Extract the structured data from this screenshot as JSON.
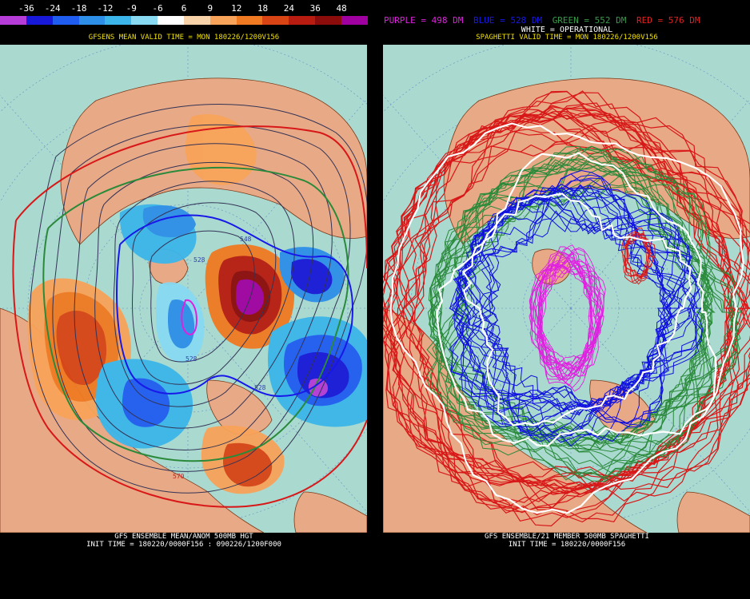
{
  "scale": {
    "ticks": [
      "-36",
      "-24",
      "-18",
      "-12",
      "-9",
      "-6",
      "6",
      "9",
      "12",
      "18",
      "24",
      "36",
      "48"
    ],
    "colors": [
      "#b53cd6",
      "#1818d8",
      "#1f5cf0",
      "#2e8fe8",
      "#3cb6ea",
      "#88d9f2",
      "#ffffff",
      "#f8d2a8",
      "#f8a35a",
      "#f07a22",
      "#d84414",
      "#b81c10",
      "#8c0c0c",
      "#a000a0"
    ]
  },
  "left": {
    "title": "GFSENS MEAN VALID TIME = MON 180226/1200V156",
    "footer1": "GFS ENSEMBLE MEAN/ANOM 500MB HGT",
    "footer2": "INIT TIME = 180220/0000F156 : 090226/1200F000",
    "contour_labels": [
      "548",
      "528",
      "528",
      "570",
      "528"
    ]
  },
  "right": {
    "legend": {
      "purple": "PURPLE = 498 DM",
      "blue": "BLUE = 528 DM",
      "green": "GREEN = 552 DM",
      "red": "RED = 576 DM",
      "white": "WHITE = OPERATIONAL"
    },
    "title": "SPAGHETTI VALID TIME = MON 180226/1200V156",
    "footer1": "GFS ENSEMBLE/21 MEMBER 500MB SPAGHETTI",
    "footer2": "INIT TIME = 180220/0000F156",
    "members": 21
  },
  "colors": {
    "ocean": "#a9d9cf",
    "land": "#e8a987",
    "title_yellow": "#f0e000",
    "purple": "#e020e0",
    "blue": "#1010e0",
    "green": "#2a8a3a",
    "red": "#d81818",
    "white": "#ffffff"
  }
}
